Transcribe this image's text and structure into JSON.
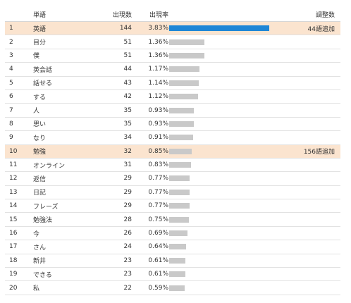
{
  "headers": {
    "word": "単語",
    "count": "出現数",
    "rate": "出現率",
    "adjust": "調整数"
  },
  "colors": {
    "highlight_row": "#fbe4cf",
    "primary_bar": "#1f86d6",
    "secondary_bar": "#c9c9c9"
  },
  "rows": [
    {
      "rank": "1",
      "word": "英語",
      "count": 144,
      "rate": "3.83%",
      "adjust": "44語追加",
      "highlight": true
    },
    {
      "rank": "2",
      "word": "目分",
      "count": 51,
      "rate": "1.36%",
      "adjust": "",
      "highlight": false
    },
    {
      "rank": "3",
      "word": "僕",
      "count": 51,
      "rate": "1.36%",
      "adjust": "",
      "highlight": false
    },
    {
      "rank": "4",
      "word": "英会話",
      "count": 44,
      "rate": "1.17%",
      "adjust": "",
      "highlight": false
    },
    {
      "rank": "5",
      "word": "話せる",
      "count": 43,
      "rate": "1.14%",
      "adjust": "",
      "highlight": false
    },
    {
      "rank": "6",
      "word": "する",
      "count": 42,
      "rate": "1.12%",
      "adjust": "",
      "highlight": false
    },
    {
      "rank": "7",
      "word": "人",
      "count": 35,
      "rate": "0.93%",
      "adjust": "",
      "highlight": false
    },
    {
      "rank": "8",
      "word": "思い",
      "count": 35,
      "rate": "0.93%",
      "adjust": "",
      "highlight": false
    },
    {
      "rank": "9",
      "word": "なり",
      "count": 34,
      "rate": "0.91%",
      "adjust": "",
      "highlight": false
    },
    {
      "rank": "10",
      "word": "勉強",
      "count": 32,
      "rate": "0.85%",
      "adjust": "156語追加",
      "highlight": true
    },
    {
      "rank": "11",
      "word": "オンライン",
      "count": 31,
      "rate": "0.83%",
      "adjust": "",
      "highlight": false
    },
    {
      "rank": "12",
      "word": "返信",
      "count": 29,
      "rate": "0.77%",
      "adjust": "",
      "highlight": false
    },
    {
      "rank": "13",
      "word": "日記",
      "count": 29,
      "rate": "0.77%",
      "adjust": "",
      "highlight": false
    },
    {
      "rank": "14",
      "word": "フレーズ",
      "count": 29,
      "rate": "0.77%",
      "adjust": "",
      "highlight": false
    },
    {
      "rank": "15",
      "word": "勉強法",
      "count": 28,
      "rate": "0.75%",
      "adjust": "",
      "highlight": false
    },
    {
      "rank": "16",
      "word": "今",
      "count": 26,
      "rate": "0.69%",
      "adjust": "",
      "highlight": false
    },
    {
      "rank": "17",
      "word": "さん",
      "count": 24,
      "rate": "0.64%",
      "adjust": "",
      "highlight": false
    },
    {
      "rank": "18",
      "word": "新井",
      "count": 23,
      "rate": "0.61%",
      "adjust": "",
      "highlight": false
    },
    {
      "rank": "19",
      "word": "できる",
      "count": 23,
      "rate": "0.61%",
      "adjust": "",
      "highlight": false
    },
    {
      "rank": "20",
      "word": "私",
      "count": 22,
      "rate": "0.59%",
      "adjust": "",
      "highlight": false
    }
  ]
}
